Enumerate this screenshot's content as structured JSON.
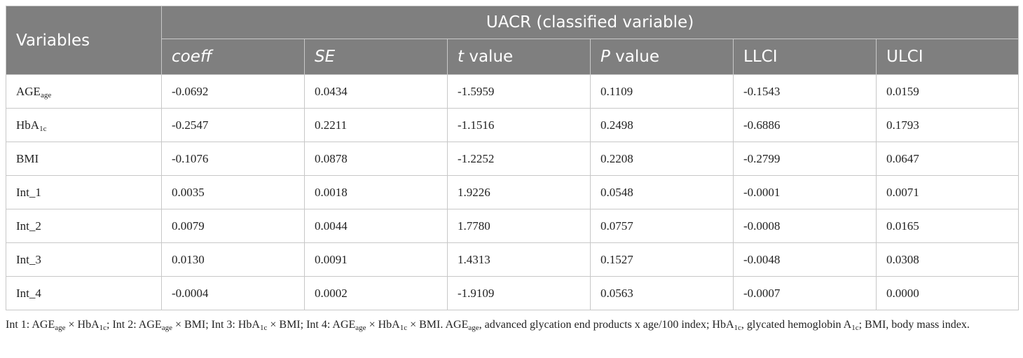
{
  "table": {
    "variables_header": "Variables",
    "group_header": "UACR (classified variable)",
    "columns": {
      "coeff": "coeff",
      "se": "SE",
      "t_italic": "t",
      "t_rest": " value",
      "p_italic": "P",
      "p_rest": " value",
      "llci": "LLCI",
      "ulci": "ULCI"
    },
    "rows": [
      {
        "label_base": "AGE",
        "label_sub": "age",
        "coeff": "-0.0692",
        "se": "0.0434",
        "t": "-1.5959",
        "p": "0.1109",
        "llci": "-0.1543",
        "ulci": "0.0159"
      },
      {
        "label_base": "HbA",
        "label_sub": "1c",
        "coeff": "-0.2547",
        "se": "0.2211",
        "t": "-1.1516",
        "p": "0.2498",
        "llci": "-0.6886",
        "ulci": "0.1793"
      },
      {
        "label_base": "BMI",
        "label_sub": "",
        "coeff": "-0.1076",
        "se": "0.0878",
        "t": "-1.2252",
        "p": "0.2208",
        "llci": "-0.2799",
        "ulci": "0.0647"
      },
      {
        "label_base": "Int_1",
        "label_sub": "",
        "coeff": "0.0035",
        "se": "0.0018",
        "t": "1.9226",
        "p": "0.0548",
        "llci": "-0.0001",
        "ulci": "0.0071"
      },
      {
        "label_base": "Int_2",
        "label_sub": "",
        "coeff": "0.0079",
        "se": "0.0044",
        "t": "1.7780",
        "p": "0.0757",
        "llci": "-0.0008",
        "ulci": "0.0165"
      },
      {
        "label_base": "Int_3",
        "label_sub": "",
        "coeff": "0.0130",
        "se": "0.0091",
        "t": "1.4313",
        "p": "0.1527",
        "llci": "-0.0048",
        "ulci": "0.0308"
      },
      {
        "label_base": "Int_4",
        "label_sub": "",
        "coeff": "-0.0004",
        "se": "0.0002",
        "t": "-1.9109",
        "p": "0.0563",
        "llci": "-0.0007",
        "ulci": "0.0000"
      }
    ]
  },
  "footnote": {
    "a1": "Int 1: AGE",
    "a1s": "age",
    "a2": " × HbA",
    "a2s": "1c",
    "a3": "; Int 2: AGE",
    "a3s": "age",
    "a4": " × BMI; Int 3: HbA",
    "a4s": "1c",
    "a5": " × BMI; Int 4: AGE",
    "a5s": "age",
    "a6": " × HbA",
    "a6s": "1c",
    "a7": " × BMI. AGE",
    "a7s": "age",
    "a8": ", advanced glycation end products x age/100 index; HbA",
    "a8s": "1c",
    "a9": ", glycated hemoglobin A",
    "a9s": "1c",
    "a10": "; BMI, body mass index."
  }
}
